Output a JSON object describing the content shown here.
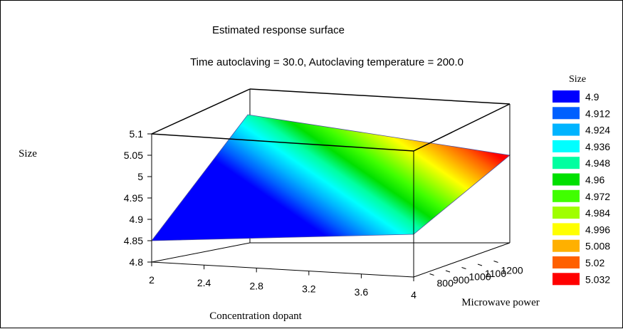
{
  "chart_data": {
    "type": "surface",
    "title": "Estimated response surface",
    "subtitle": "Time autoclaving = 30.0, Autoclaving temperature = 200.0",
    "xlabel": "Concentration dopant",
    "ylabel": "Microwave power",
    "zlabel": "Size",
    "x_ticks": [
      "2",
      "2.4",
      "2.8",
      "3.2",
      "3.6",
      "4"
    ],
    "y_ticks": [
      "800",
      "900",
      "1000",
      "1100",
      "1200"
    ],
    "z_ticks": [
      "4.8",
      "4.85",
      "4.9",
      "4.95",
      "5",
      "5.05",
      "5.1"
    ],
    "xlim": [
      2,
      4
    ],
    "ylim": [
      700,
      1300
    ],
    "zlim": [
      4.8,
      5.1
    ],
    "surface_corners": [
      {
        "x": 2,
        "y": 700,
        "z": 4.85
      },
      {
        "x": 4,
        "y": 700,
        "z": 4.9
      },
      {
        "x": 4,
        "y": 1300,
        "z": 5.04
      },
      {
        "x": 2,
        "y": 1300,
        "z": 5.1
      }
    ],
    "legend": {
      "title": "Size",
      "placement": "right",
      "items": [
        {
          "label": "4.9",
          "color": "#0000ff"
        },
        {
          "label": "4.912",
          "color": "#0060ff"
        },
        {
          "label": "4.924",
          "color": "#00b4ff"
        },
        {
          "label": "4.936",
          "color": "#00ffff"
        },
        {
          "label": "4.948",
          "color": "#00ffa0"
        },
        {
          "label": "4.96",
          "color": "#00e000"
        },
        {
          "label": "4.972",
          "color": "#40ff00"
        },
        {
          "label": "4.984",
          "color": "#a0ff00"
        },
        {
          "label": "4.996",
          "color": "#ffff00"
        },
        {
          "label": "5.008",
          "color": "#ffb000"
        },
        {
          "label": "5.02",
          "color": "#ff6000"
        },
        {
          "label": "5.032",
          "color": "#ff0000"
        }
      ]
    }
  }
}
